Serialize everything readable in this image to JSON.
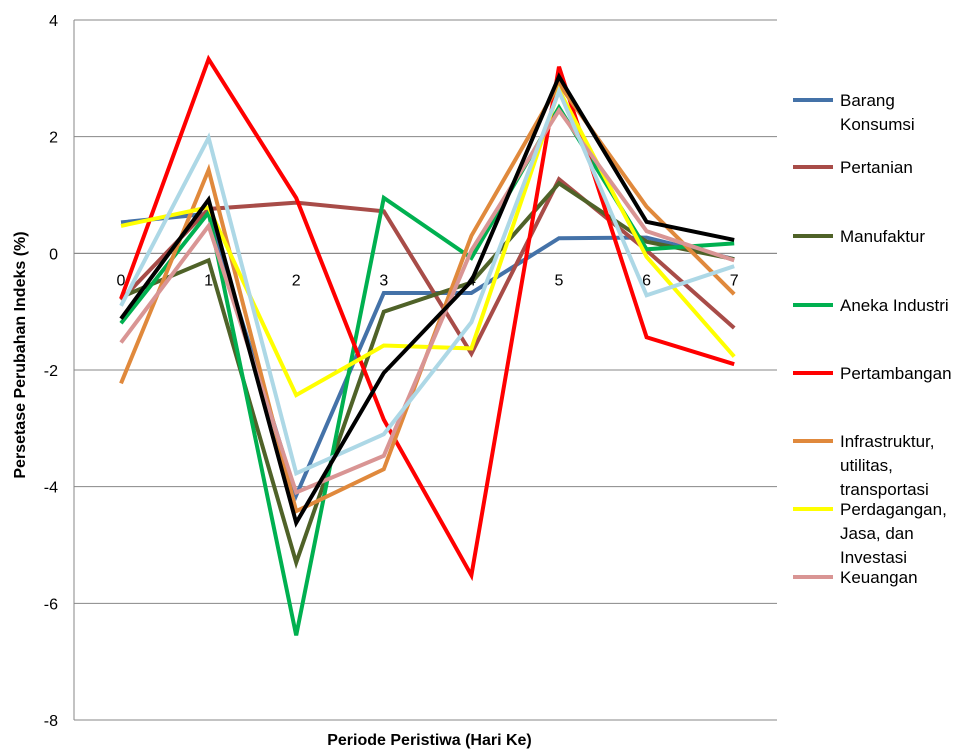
{
  "chart_data": {
    "type": "line",
    "title": "",
    "xlabel": "Periode Peristiwa (Hari Ke)",
    "ylabel": "Persetase Perubahan Indeks (%)",
    "x": [
      0,
      1,
      2,
      3,
      4,
      5,
      6,
      7
    ],
    "x_tick_labels": [
      "0",
      "1",
      "2",
      "3",
      "4",
      "5",
      "6",
      "7"
    ],
    "ylim": [
      -8,
      4
    ],
    "y_ticks": [
      4,
      2,
      0,
      -2,
      -4,
      -6,
      -8
    ],
    "y_tick_labels": [
      "4",
      "2",
      "0",
      "-2",
      "-4",
      "-6",
      "-8"
    ],
    "grid": "horizontal",
    "legend_position": "right",
    "series": [
      {
        "name": "Barang Konsumsi",
        "legend_lines": [
          "Barang",
          "Konsumsi"
        ],
        "color": "#4472A8",
        "values": [
          0.53,
          0.68,
          -4.15,
          -0.68,
          -0.68,
          0.26,
          0.27,
          -0.1
        ]
      },
      {
        "name": "Pertanian",
        "legend_lines": [
          "Pertanian"
        ],
        "color": "#A84C48",
        "values": [
          -0.8,
          0.76,
          0.87,
          0.72,
          -1.72,
          1.27,
          0.05,
          -1.28
        ]
      },
      {
        "name": "Manufaktur",
        "legend_lines": [
          "Manufaktur"
        ],
        "color": "#4F6228",
        "values": [
          -0.75,
          -0.12,
          -5.3,
          -1.0,
          -0.5,
          1.2,
          0.2,
          -0.1
        ]
      },
      {
        "name": "Aneka Industri",
        "legend_lines": [
          "Aneka Industri"
        ],
        "color": "#00B050",
        "values": [
          -1.2,
          0.7,
          -6.55,
          0.95,
          -0.08,
          2.5,
          0.07,
          0.17
        ]
      },
      {
        "name": "Pertambangan",
        "legend_lines": [
          "Pertambangan"
        ],
        "color": "#FF0000",
        "values": [
          -0.78,
          3.33,
          0.95,
          -2.85,
          -5.52,
          3.2,
          -1.44,
          -1.9
        ]
      },
      {
        "name": "Infrastruktur, utilitas, transportasi",
        "legend_lines": [
          "Infrastruktur,",
          "utilitas,",
          "transportasi"
        ],
        "color": "#E0893C",
        "values": [
          -2.23,
          1.43,
          -4.42,
          -3.7,
          0.3,
          2.9,
          0.8,
          -0.7
        ]
      },
      {
        "name": "Perdagangan, Jasa, dan Investasi",
        "legend_lines": [
          "Perdagangan,",
          "Jasa, dan",
          "Investasi"
        ],
        "color": "#FFFF00",
        "values": [
          0.47,
          0.79,
          -2.43,
          -1.58,
          -1.63,
          2.8,
          -0.06,
          -1.77
        ]
      },
      {
        "name": "Keuangan",
        "legend_lines": [
          "Keuangan"
        ],
        "color": "#D99594",
        "values": [
          -1.53,
          0.47,
          -4.1,
          -3.47,
          0.05,
          2.45,
          0.38,
          -0.12
        ]
      },
      {
        "color": "#ADD8E6",
        "values": [
          -0.9,
          1.98,
          -3.77,
          -3.1,
          -1.18,
          2.78,
          -0.72,
          -0.22
        ]
      },
      {
        "color": "#000000",
        "values": [
          -1.12,
          0.92,
          -4.62,
          -2.05,
          -0.48,
          3.03,
          0.54,
          0.23
        ]
      }
    ]
  }
}
